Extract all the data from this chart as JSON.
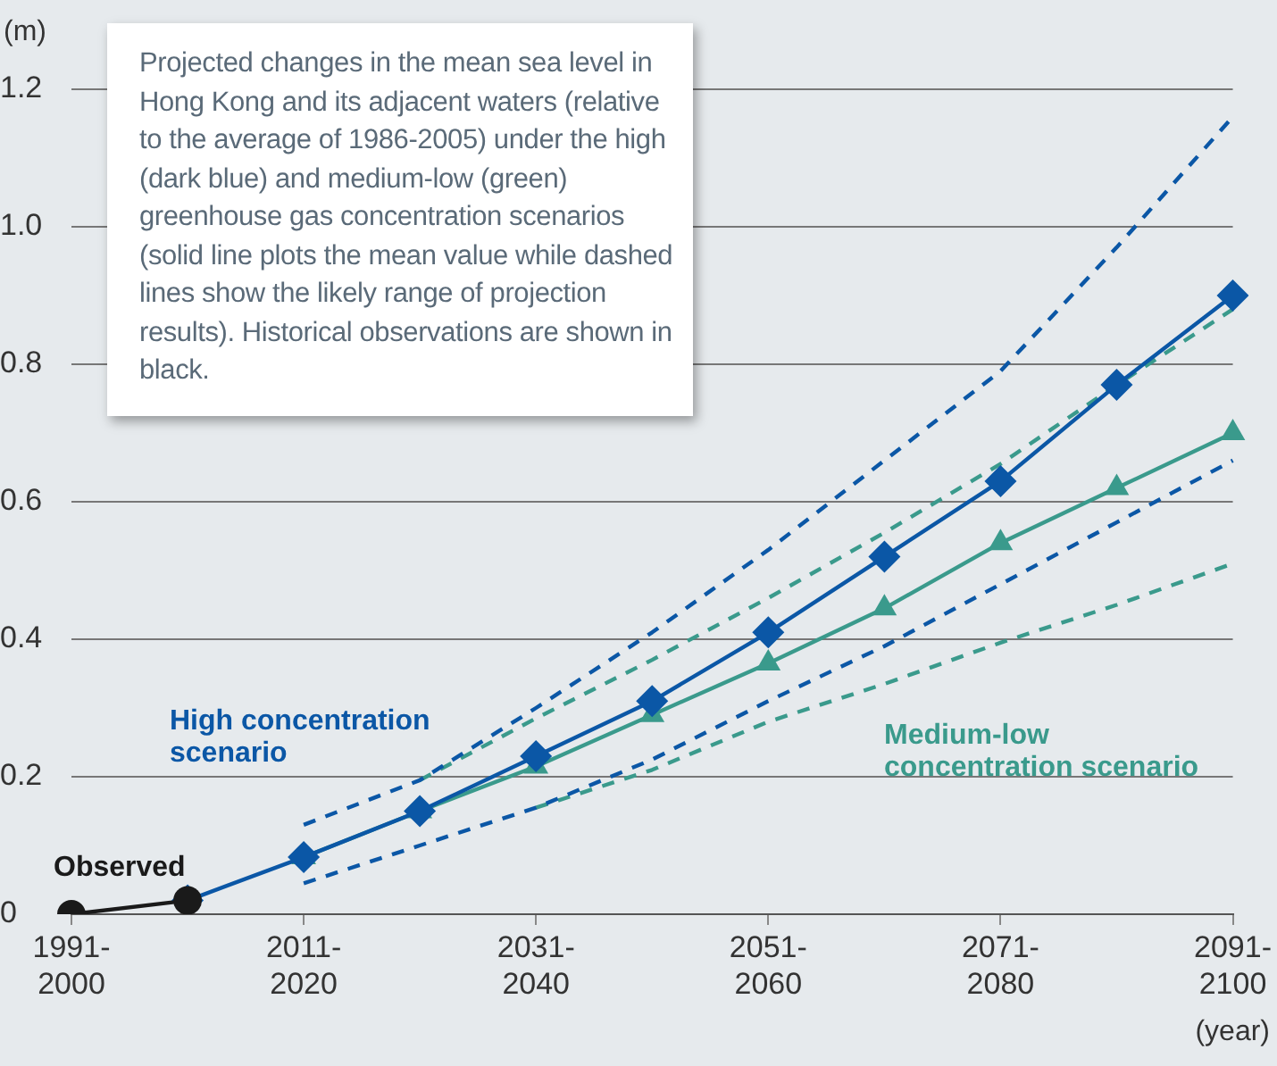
{
  "chart_data": {
    "type": "line",
    "annotations": [
      "Projected changes in the mean sea level in Hong Kong and its adjacent waters (relative to the average of 1986-2005) under the high (dark blue) and medium-low (green) greenhouse gas concentration scenarios (solid line plots the mean value while dashed lines show the likely range of projection results). Historical observations are shown in black."
    ],
    "ylabel": "(m)",
    "xlabel": "(year)",
    "categories": [
      "1991-2000",
      null,
      "2011-2020",
      null,
      "2031-2040",
      null,
      "2051-2060",
      null,
      "2071-2080",
      null,
      "2091-2100"
    ],
    "series": [
      {
        "name": "Observed",
        "color": "#1a1a1a",
        "marker": "circle",
        "line_style": "solid",
        "values": [
          0,
          0.02,
          null,
          null,
          null,
          null,
          null,
          null,
          null,
          null,
          null
        ]
      },
      {
        "name": "High concentration scenario",
        "color": "#0b57a6",
        "marker": "diamond",
        "line_style": "solid",
        "values": [
          null,
          0.02,
          0.083,
          0.15,
          0.23,
          0.31,
          0.41,
          0.52,
          0.63,
          0.77,
          0.9
        ]
      },
      {
        "name": "Medium-low concentration scenario",
        "color": "#3a9a8c",
        "marker": "triangle",
        "line_style": "solid",
        "values": [
          null,
          null,
          0.083,
          0.15,
          0.215,
          0.29,
          0.365,
          0.445,
          0.54,
          0.62,
          0.7
        ]
      },
      {
        "color": "#0b57a6",
        "marker": "none",
        "line_style": "dashed",
        "values": [
          null,
          null,
          0.13,
          0.195,
          0.3,
          0.41,
          0.53,
          0.66,
          0.79,
          0.97,
          1.16
        ]
      },
      {
        "color": "#0b57a6",
        "marker": "none",
        "line_style": "dashed",
        "values": [
          null,
          null,
          0.045,
          0.1,
          0.155,
          0.225,
          0.31,
          0.39,
          0.48,
          0.57,
          0.66
        ]
      },
      {
        "color": "#3a9a8c",
        "marker": "none",
        "line_style": "dashed",
        "values": [
          null,
          null,
          null,
          0.195,
          0.285,
          0.37,
          0.46,
          0.555,
          0.655,
          0.77,
          0.88
        ]
      },
      {
        "color": "#3a9a8c",
        "marker": "none",
        "line_style": "dashed",
        "values": [
          null,
          null,
          null,
          null,
          0.155,
          0.21,
          0.28,
          0.335,
          0.395,
          0.45,
          0.51
        ]
      }
    ],
    "ylim": [
      0,
      1.2
    ],
    "yticks": [
      0,
      0.2,
      0.4,
      0.6,
      0.8,
      {
        "value": 1,
        "label": "1.0"
      },
      1.2
    ],
    "grid": "y",
    "legend": false
  }
}
